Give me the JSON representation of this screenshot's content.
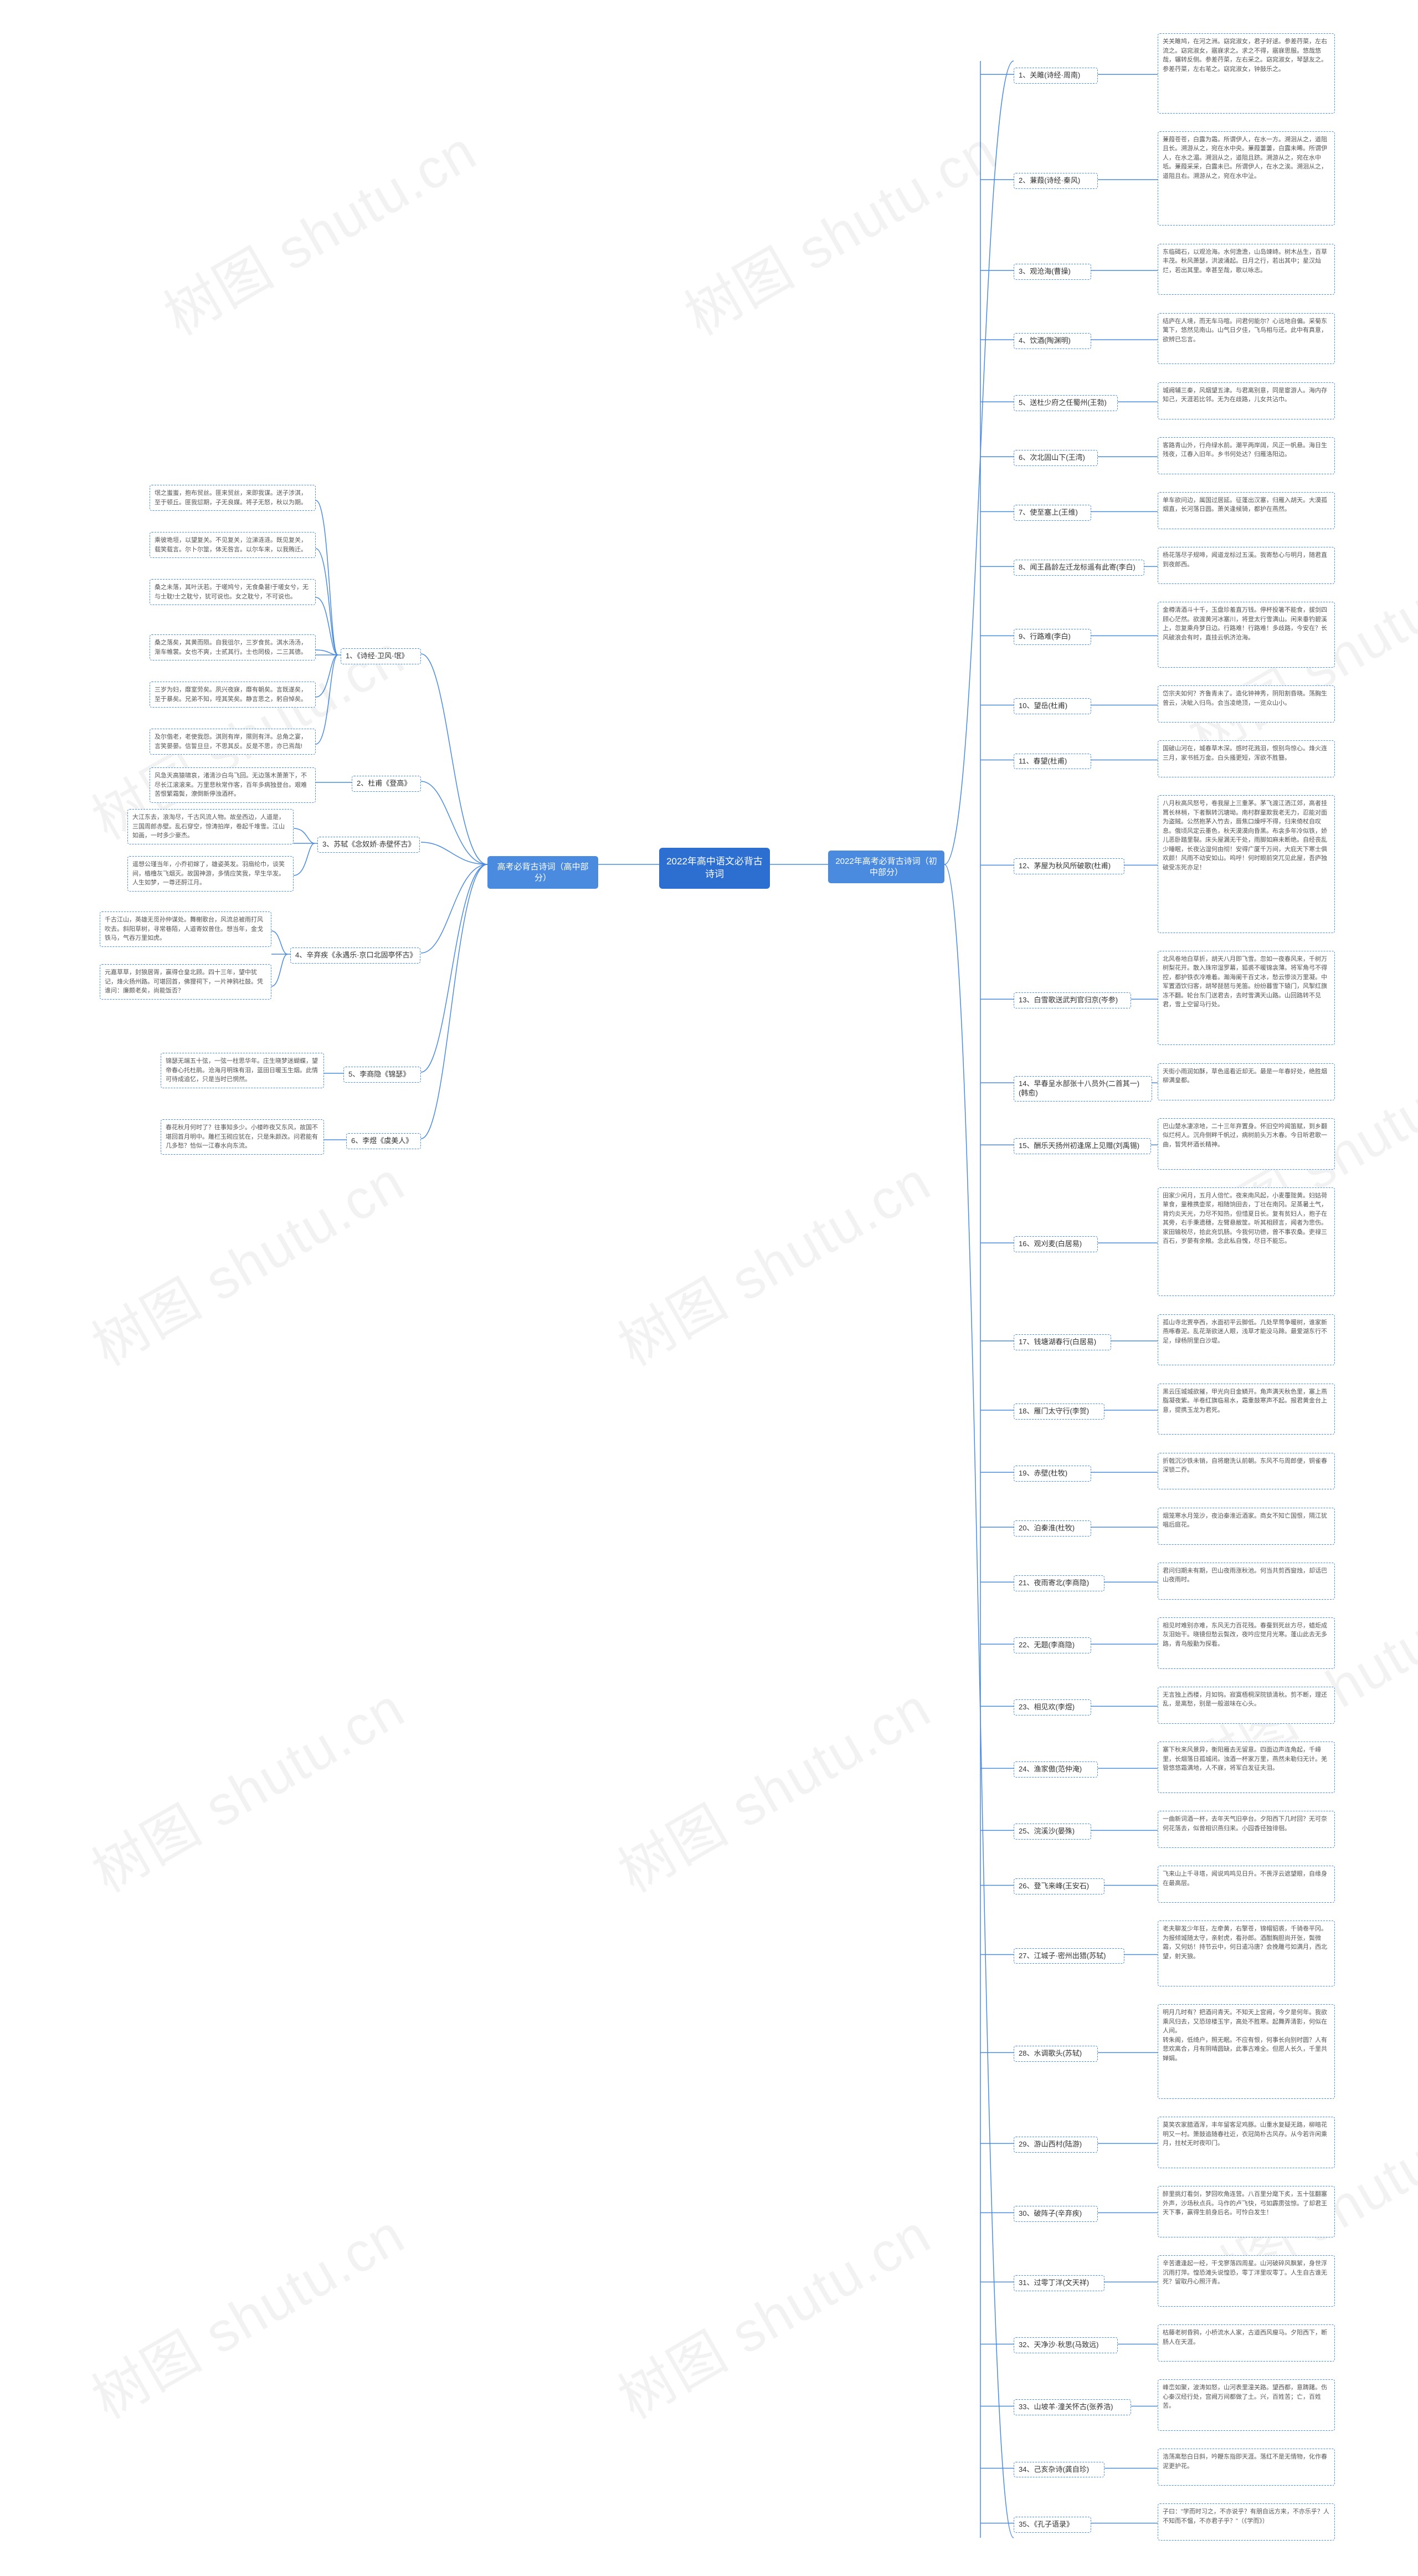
{
  "watermark": "树图 shutu.cn",
  "colors": {
    "root_bg": "#2c6fd1",
    "l1_bg": "#4a8be0",
    "border": "#4a8be0",
    "text": "#333333",
    "text_light": "#555555",
    "wm": "rgba(0,0,0,0.05)"
  },
  "root": "2022年高中语文必背古诗词",
  "branch_left": "高考必背古诗词（高中部分）",
  "branch_right": "2022年高考必背古诗词（初中部分）",
  "left_items": [
    {
      "title": "1、《诗经·卫风·氓》",
      "contents": [
        "氓之蚩蚩，抱布贸丝。匪来贸丝，来即我谋。送子涉淇，至于顿丘。匪我愆期，子无良媒。将子无怒，秋以为期。",
        "乘彼垝垣，以望复关。不见复关，泣涕涟涟。既见复关，载笑载言。尔卜尔筮，体无咎言。以尔车来，以我贿迁。",
        "桑之未落，其叶沃若。于嗟鸠兮，无食桑葚!于嗟女兮，无与士耽!士之耽兮，犹可说也。女之耽兮，不可说也。",
        "桑之落矣，其黄而陨。自我徂尔，三岁食贫。淇水汤汤，渐车帷裳。女也不爽，士贰其行。士也罔极，二三其德。",
        "三岁为妇，靡室劳矣。夙兴夜寐，靡有朝矣。言既遂矣，至于暴矣。兄弟不知，咥其笑矣。静言思之，躬自悼矣。",
        "及尔偕老，老使我怨。淇则有岸，隰则有泮。总角之宴，言笑晏晏。信誓旦旦，不思其反。反是不思，亦已焉哉!"
      ]
    },
    {
      "title": "2、杜甫《登高》",
      "contents": [
        "风急天高猿啸哀，渚清沙白鸟飞回。无边落木萧萧下，不尽长江滚滚来。万里悲秋常作客，百年多病独登台。艰难苦恨繁霜鬓，潦倒新停浊酒杯。"
      ]
    },
    {
      "title": "3、苏轼《念奴娇·赤壁怀古》",
      "contents": [
        "大江东去，浪淘尽，千古风流人物。故垒西边，人道是，三国周郎赤壁。乱石穿空，惊涛拍岸，卷起千堆雪。江山如画，一时多少豪杰。",
        "遥想公瑾当年，小乔初嫁了，雄姿英发。羽扇纶巾，谈笑间，樯橹灰飞烟灭。故国神游，多情应笑我，早生华发。人生如梦，一尊还酹江月。"
      ]
    },
    {
      "title": "4、辛弃疾《永遇乐·京口北固亭怀古》",
      "contents": [
        "千古江山，英雄无觅孙仲谋处。舞榭歌台，风流总被雨打风吹去。斜阳草树，寻常巷陌，人道寄奴曾住。想当年，金戈铁马，气吞万里如虎。",
        "元嘉草草，封狼居胥，赢得仓皇北顾。四十三年，望中犹记，烽火扬州路。可堪回首，佛狸祠下，一片神鸦社鼓。凭谁问：廉颇老矣，尚能饭否？"
      ]
    },
    {
      "title": "5、李商隐《锦瑟》",
      "contents": [
        "锦瑟无端五十弦，一弦一柱思华年。庄生晓梦迷蝴蝶，望帝春心托杜鹃。沧海月明珠有泪，蓝田日暖玉生烟。此情可待成追忆，只是当时已惘然。"
      ]
    },
    {
      "title": "6、李煜《虞美人》",
      "contents": [
        "春花秋月何时了？往事知多少。小楼昨夜又东风，故国不堪回首月明中。雕栏玉砌应犹在，只是朱颜改。问君能有几多愁？恰似一江春水向东流。"
      ]
    }
  ],
  "right_items": [
    {
      "title": "1、关雎(诗经·周南)",
      "content": "关关雎鸠，在河之洲。窈窕淑女，君子好逑。参差荇菜，左右流之。窈窕淑女，寤寐求之。求之不得，寤寐思服。悠哉悠哉，辗转反侧。参差荇菜，左右采之。窈窕淑女，琴瑟友之。参差荇菜，左右芼之。窈窕淑女，钟鼓乐之。"
    },
    {
      "title": "2、蒹葭(诗经·秦风)",
      "content": "蒹葭苍苍，白露为霜。所谓伊人，在水一方。溯洄从之，道阻且长。溯游从之，宛在水中央。蒹葭萋萋，白露未晞。所谓伊人，在水之湄。溯洄从之，道阻且跻。溯游从之，宛在水中坻。蒹葭采采，白露未已。所谓伊人，在水之涘。溯洄从之，道阻且右。溯游从之，宛在水中沚。"
    },
    {
      "title": "3、观沧海(曹操)",
      "content": "东临碣石，以观沧海。水何澹澹，山岛竦峙。树木丛生，百草丰茂。秋风萧瑟，洪波涌起。日月之行，若出其中；星汉灿烂，若出其里。幸甚至哉，歌以咏志。"
    },
    {
      "title": "4、饮酒(陶渊明)",
      "content": "结庐在人境，而无车马喧。问君何能尔？心远地自偏。采菊东篱下，悠然见南山。山气日夕佳，飞鸟相与还。此中有真意，欲辨已忘言。"
    },
    {
      "title": "5、送杜少府之任蜀州(王勃)",
      "content": "城阙辅三秦，风烟望五津。与君离别意，同是宦游人。海内存知己，天涯若比邻。无为在歧路，儿女共沾巾。"
    },
    {
      "title": "6、次北固山下(王湾)",
      "content": "客路青山外，行舟绿水前。潮平两岸阔，风正一帆悬。海日生残夜，江春入旧年。乡书何处达？归雁洛阳边。"
    },
    {
      "title": "7、使至塞上(王维)",
      "content": "单车欲问边，属国过居延。征蓬出汉塞，归雁入胡天。大漠孤烟直，长河落日圆。萧关逢候骑，都护在燕然。"
    },
    {
      "title": "8、闻王昌龄左迁龙标遥有此寄(李白)",
      "content": "杨花落尽子规啼，闻道龙标过五溪。我寄愁心与明月，随君直到夜郎西。"
    },
    {
      "title": "9、行路难(李白)",
      "content": "金樽清酒斗十千，玉盘珍羞直万钱。停杯投箸不能食，拔剑四顾心茫然。欲渡黄河冰塞川，将登太行雪满山。闲来垂钓碧溪上，忽复乘舟梦日边。行路难！行路难！多歧路，今安在？长风破浪会有时，直挂云帆济沧海。"
    },
    {
      "title": "10、望岳(杜甫)",
      "content": "岱宗夫如何？齐鲁青未了。造化钟神秀，阴阳割昏晓。荡胸生曾云，决眦入归鸟。会当凌绝顶，一览众山小。"
    },
    {
      "title": "11、春望(杜甫)",
      "content": "国破山河在，城春草木深。感时花溅泪，恨别鸟惊心。烽火连三月，家书抵万金。白头搔更短，浑欲不胜簪。"
    },
    {
      "title": "12、茅屋为秋风所破歌(杜甫)",
      "content": "八月秋高风怒号，卷我屋上三重茅。茅飞渡江洒江郊，高者挂罥长林梢，下者飘转沉塘坳。南村群童欺我老无力，忍能对面为盗贼。公然抱茅入竹去，唇焦口燥呼不得，归来倚杖自叹息。俄顷风定云墨色，秋天漠漠向昏黑。布衾多年冷似铁，娇儿恶卧踏里裂。床头屋漏无干处，雨脚如麻未断绝。自经丧乱少睡眠，长夜沾湿何由彻！安得广厦千万间，大庇天下寒士俱欢颜！风雨不动安如山。呜呼！何时眼前突兀见此屋，吾庐独破受冻死亦足！"
    },
    {
      "title": "13、白雪歌送武判官归京(岑参)",
      "content": "北风卷地白草折，胡天八月即飞雪。忽如一夜春风来，千树万树梨花开。散入珠帘湿罗幕，狐裘不暖锦衾薄。将军角弓不得控，都护铁衣冷难着。瀚海阑干百丈冰，愁云惨淡万里凝。中军置酒饮归客，胡琴琵琶与羌笛。纷纷暮雪下辕门，风掣红旗冻不翻。轮台东门送君去，去时雪满天山路。山回路转不见君，雪上空留马行处。"
    },
    {
      "title": "14、早春呈水部张十八员外(二首其一)(韩愈)",
      "content": "天街小雨润如酥，草色遥看近却无。最是一年春好处，绝胜烟柳满皇都。"
    },
    {
      "title": "15、酬乐天扬州初逢席上见赠(刘禹锡)",
      "content": "巴山楚水凄凉地，二十三年弃置身。怀旧空吟闻笛赋，到乡翻似烂柯人。沉舟侧畔千帆过，病树前头万木春。今日听君歌一曲，暂凭杯酒长精神。"
    },
    {
      "title": "16、观刈麦(白居易)",
      "content": "田家少闲月，五月人倍忙。夜来南风起，小麦覆陇黄。妇姑荷箪食，童稚携壶浆，相随饷田去，丁壮在南冈。足蒸暑土气，背灼炎天光，力尽不知热，但惜夏日长。复有贫妇人，抱子在其旁，右手秉遗穗，左臂悬敝筐。听其相顾言，闻者为悲伤。家田输税尽，拾此充饥肠。今我何功德，曾不事农桑。吏禄三百石，岁晏有余粮。念此私自愧，尽日不能忘。"
    },
    {
      "title": "17、钱塘湖春行(白居易)",
      "content": "孤山寺北贾亭西，水面初平云脚低。几处早莺争暖树，谁家新燕啄春泥。乱花渐欲迷人眼，浅草才能没马蹄。最爱湖东行不足，绿杨阴里白沙堤。"
    },
    {
      "title": "18、雁门太守行(李贺)",
      "content": "黑云压城城欲摧，甲光向日金鳞开。角声满天秋色里，塞上燕脂凝夜紫。半卷红旗临易水，霜重鼓寒声不起。报君黄金台上意，提携玉龙为君死。"
    },
    {
      "title": "19、赤壁(杜牧)",
      "content": "折戟沉沙铁未销，自将磨洗认前朝。东风不与周郎便，铜雀春深锁二乔。"
    },
    {
      "title": "20、泊秦淮(杜牧)",
      "content": "烟笼寒水月笼沙，夜泊秦淮近酒家。商女不知亡国恨，隔江犹唱后庭花。"
    },
    {
      "title": "21、夜雨寄北(李商隐)",
      "content": "君问归期未有期，巴山夜雨涨秋池。何当共剪西窗烛，却话巴山夜雨时。"
    },
    {
      "title": "22、无题(李商隐)",
      "content": "相见时难别亦难，东风无力百花残。春蚕到死丝方尽，蜡炬成灰泪始干。晓镜但愁云鬓改，夜吟应觉月光寒。蓬山此去无多路，青鸟殷勤为探看。"
    },
    {
      "title": "23、相见欢(李煜)",
      "content": "无言独上西楼，月如钩。寂寞梧桐深院锁清秋。剪不断，理还乱，是离愁，别是一般滋味在心头。"
    },
    {
      "title": "24、渔家傲(范仲淹)",
      "content": "塞下秋来风景异，衡阳雁去无留意。四面边声连角起，千嶂里，长烟落日孤城闭。浊酒一杯家万里，燕然未勒归无计。羌管悠悠霜满地，人不寐，将军白发征夫泪。"
    },
    {
      "title": "25、浣溪沙(晏殊)",
      "content": "一曲新词酒一杯，去年天气旧亭台。夕阳西下几时回？无可奈何花落去，似曾相识燕归来。小园香径独徘徊。"
    },
    {
      "title": "26、登飞来峰(王安石)",
      "content": "飞来山上千寻塔，闻说鸡鸣见日升。不畏浮云遮望眼，自缘身在最高层。"
    },
    {
      "title": "27、江城子·密州出猎(苏轼)",
      "content": "老夫聊发少年狂，左牵黄，右擎苍，锦帽貂裘，千骑卷平冈。为报倾城随太守，亲射虎，看孙郎。酒酣胸胆尚开张，鬓微霜，又何妨！持节云中，何日遣冯唐？会挽雕弓如满月，西北望，射天狼。"
    },
    {
      "title": "28、水调歌头(苏轼)",
      "content": "明月几时有？把酒问青天。不知天上宫阙，今夕是何年。我欲乘风归去，又恐琼楼玉宇，高处不胜寒。起舞弄清影，何似在人间。\\n转朱阁，低绮户，照无眠。不应有恨，何事长向别时圆？人有悲欢离合，月有阴晴圆缺，此事古难全。但愿人长久，千里共婵娟。"
    },
    {
      "title": "29、游山西村(陆游)",
      "content": "莫笑农家腊酒浑，丰年留客足鸡豚。山重水复疑无路，柳暗花明又一村。箫鼓追随春社近，衣冠简朴古风存。从今若许闲乘月，拄杖无时夜叩门。"
    },
    {
      "title": "30、破阵子(辛弃疾)",
      "content": "醉里挑灯看剑，梦回吹角连营。八百里分麾下炙，五十弦翻塞外声，沙场秋点兵。马作的卢飞快，弓如霹雳弦惊。了却君王天下事，赢得生前身后名。可怜白发生！"
    },
    {
      "title": "31、过零丁洋(文天祥)",
      "content": "辛苦遭逢起一经，干戈寥落四周星。山河破碎风飘絮，身世浮沉雨打萍。惶恐滩头说惶恐，零丁洋里叹零丁。人生自古谁无死？留取丹心照汗青。"
    },
    {
      "title": "32、天净沙·秋思(马致远)",
      "content": "枯藤老树昏鸦，小桥流水人家，古道西风瘦马。夕阳西下，断肠人在天涯。"
    },
    {
      "title": "33、山坡羊·潼关怀古(张养浩)",
      "content": "峰峦如聚，波涛如怒，山河表里潼关路。望西都，意踌躇。伤心秦汉经行处，宫阙万间都做了土。兴，百姓苦；亡，百姓苦。"
    },
    {
      "title": "34、己亥杂诗(龚自珍)",
      "content": "浩荡离愁白日斜，吟鞭东指即天涯。落红不是无情物，化作春泥更护花。"
    },
    {
      "title": "35、《孔子语录》",
      "content": "子曰：\"学而时习之，不亦说乎？有朋自远方来，不亦乐乎？人不知而不愠，不亦君子乎？\"（《学而》）"
    }
  ]
}
